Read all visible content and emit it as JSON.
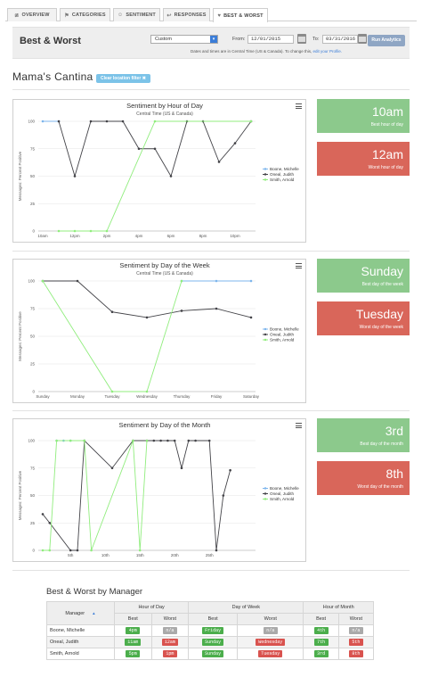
{
  "tabs": [
    {
      "label": "OVERVIEW",
      "icon": "chart-line-icon"
    },
    {
      "label": "CATEGORIES",
      "icon": "tag-icon"
    },
    {
      "label": "SENTIMENT",
      "icon": "smiley-icon"
    },
    {
      "label": "RESPONSES",
      "icon": "reply-icon"
    },
    {
      "label": "BEST & WORST",
      "icon": "thumbs-icon",
      "active": true
    }
  ],
  "header": {
    "title": "Best & Worst",
    "range_value": "Custom",
    "from_label": "From:",
    "from_date": "12/01/2015",
    "to_label": "To:",
    "to_date": "03/31/2016",
    "run_label": "Run Analytics",
    "tz_note": "Dates and times are in Central Time (US & Canada). To change this,",
    "tz_link": "edit your Profile."
  },
  "location": {
    "name": "Mama's Cantina",
    "clear_filter": "Clear location filter"
  },
  "colors": {
    "boone": "#7cb5ec",
    "oneal": "#434348",
    "smith": "#90ed7d"
  },
  "legend": [
    "Boone, Michelle",
    "Oneal, Judith",
    "Smith, Arnold"
  ],
  "chart_data": [
    {
      "type": "line",
      "title": "Sentiment by Hour of Day",
      "subtitle": "Central Time (US & Canada)",
      "ylabel": "Messages: Percent Positive",
      "ylim": [
        0,
        100
      ],
      "yticks": [
        0,
        25,
        50,
        75,
        100
      ],
      "x": [
        0,
        1,
        2,
        3,
        4,
        5,
        6,
        7,
        8,
        9,
        10,
        11,
        12,
        13,
        14,
        15,
        16,
        17,
        18,
        19,
        20,
        21,
        22,
        23
      ],
      "xlim": [
        0,
        23
      ],
      "xticks": [
        {
          "v": 0,
          "label": "10am"
        },
        {
          "v": 4,
          "label": "12pm"
        },
        {
          "v": 8,
          "label": "2pm"
        },
        {
          "v": 12,
          "label": "4pm"
        },
        {
          "v": 16,
          "label": "6pm"
        },
        {
          "v": 20,
          "label": "8pm"
        },
        {
          "v": 24,
          "label": "10pm"
        }
      ],
      "series": [
        {
          "name": "Boone, Michelle",
          "points": [
            [
              0,
              100
            ],
            [
              2,
              100
            ]
          ]
        },
        {
          "name": "Oneal, Judith",
          "points": [
            [
              2,
              100
            ],
            [
              4,
              50
            ],
            [
              6,
              100
            ],
            [
              8,
              100
            ],
            [
              10,
              100
            ],
            [
              12,
              75
            ],
            [
              14,
              75
            ],
            [
              16,
              50
            ],
            [
              18,
              100
            ],
            [
              20,
              100
            ],
            [
              22,
              63
            ],
            [
              24,
              80
            ],
            [
              26,
              100
            ]
          ]
        },
        {
          "name": "Smith, Arnold",
          "points": [
            [
              2,
              0
            ],
            [
              4,
              0
            ],
            [
              6,
              0
            ],
            [
              8,
              0
            ],
            [
              14,
              100
            ],
            [
              26,
              100
            ]
          ]
        }
      ],
      "xmax": 26,
      "best_label": "10am",
      "best_caption": "Best hour of day",
      "worst_label": "12am",
      "worst_caption": "Worst hour of day"
    },
    {
      "type": "line",
      "title": "Sentiment by Day of the Week",
      "subtitle": "Central Time (US & Canada)",
      "ylabel": "Messages: Percent Positive",
      "ylim": [
        0,
        100
      ],
      "yticks": [
        0,
        25,
        50,
        75,
        100
      ],
      "categories": [
        "Sunday",
        "Monday",
        "Tuesday",
        "Wednesday",
        "Thursday",
        "Friday",
        "Saturday"
      ],
      "series": [
        {
          "name": "Boone, Michelle",
          "values": [
            null,
            null,
            null,
            null,
            100,
            100,
            100
          ]
        },
        {
          "name": "Oneal, Judith",
          "values": [
            100,
            100,
            72,
            67,
            73,
            75,
            67
          ]
        },
        {
          "name": "Smith, Arnold",
          "values": [
            100,
            null,
            0,
            0,
            100,
            null,
            null
          ]
        }
      ],
      "best_label": "Sunday",
      "best_caption": "Best day of the week",
      "worst_label": "Tuesday",
      "worst_caption": "Worst day of the week"
    },
    {
      "type": "line",
      "title": "Sentiment by Day of the Month",
      "subtitle": "",
      "ylabel": "Messages: Percent Positive",
      "ylim": [
        0,
        100
      ],
      "yticks": [
        0,
        25,
        50,
        75,
        100
      ],
      "xlim": [
        1,
        31
      ],
      "xticks": [
        {
          "v": 5,
          "label": "5th"
        },
        {
          "v": 10,
          "label": "10th"
        },
        {
          "v": 15,
          "label": "15th"
        },
        {
          "v": 20,
          "label": "20th"
        },
        {
          "v": 25,
          "label": "25th"
        }
      ],
      "series": [
        {
          "name": "Boone, Michelle",
          "points": [
            [
              3,
              100
            ],
            [
              4,
              100
            ],
            [
              5,
              100
            ]
          ]
        },
        {
          "name": "Oneal, Judith",
          "points": [
            [
              1,
              33
            ],
            [
              2,
              25
            ],
            [
              5,
              0
            ],
            [
              6,
              0
            ],
            [
              7,
              100
            ],
            [
              11,
              75
            ],
            [
              14,
              100
            ],
            [
              16,
              100
            ],
            [
              17,
              100
            ],
            [
              18,
              100
            ],
            [
              19,
              100
            ],
            [
              20,
              100
            ],
            [
              21,
              75
            ],
            [
              22,
              100
            ],
            [
              23,
              100
            ],
            [
              25,
              100
            ],
            [
              26,
              0
            ],
            [
              27,
              50
            ],
            [
              28,
              73
            ]
          ]
        },
        {
          "name": "Smith, Arnold",
          "points": [
            [
              1,
              0
            ],
            [
              2,
              0
            ],
            [
              3,
              100
            ],
            [
              5,
              100
            ],
            [
              7,
              100
            ],
            [
              8,
              0
            ],
            [
              14,
              100
            ],
            [
              15,
              0
            ],
            [
              16,
              100
            ]
          ]
        }
      ],
      "best_label": "3rd",
      "best_caption": "Best day of the month",
      "worst_label": "8th",
      "worst_caption": "Worst day of the month"
    }
  ],
  "managers": {
    "title": "Best & Worst by Manager",
    "group_headers": [
      "Hour of Day",
      "Day of Week",
      "Hour of Month"
    ],
    "col_manager": "Manager",
    "col_best": "Best",
    "col_worst": "Worst",
    "rows": [
      {
        "name": "Boone, Michelle",
        "hod_best": "4pm",
        "hod_worst": "n/a",
        "dow_best": "Friday",
        "dow_worst": "n/a",
        "hom_best": "4th",
        "hom_worst": "n/a"
      },
      {
        "name": "Oneal, Judith",
        "hod_best": "11am",
        "hod_worst": "12am",
        "dow_best": "Sunday",
        "dow_worst": "Wednesday",
        "hom_best": "7th",
        "hom_worst": "5th"
      },
      {
        "name": "Smith, Arnold",
        "hod_best": "5pm",
        "hod_worst": "1pm",
        "dow_best": "Sunday",
        "dow_worst": "Tuesday",
        "hom_best": "3rd",
        "hom_worst": "8th"
      }
    ]
  }
}
